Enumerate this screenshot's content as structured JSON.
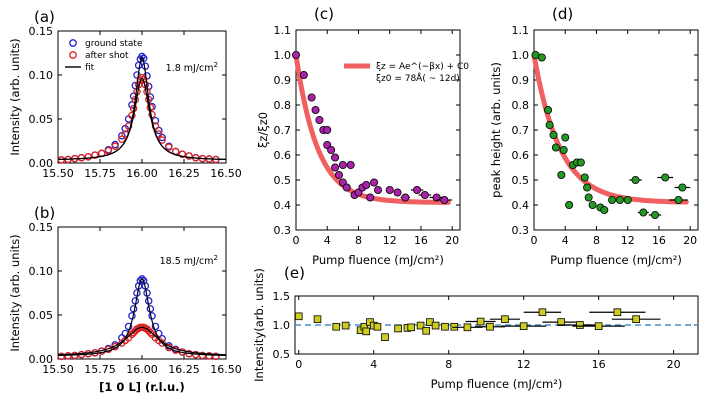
{
  "chart_data": [
    {
      "id": "a",
      "type": "scatter",
      "panel_label": "(a)",
      "ylabel": "Intensity (arb. units)",
      "xlim": [
        15.5,
        16.5
      ],
      "ylim": [
        0,
        0.15
      ],
      "xticks": [
        "15.50",
        "15.75",
        "16.00",
        "16.25",
        "16.50"
      ],
      "yticks": [
        "0.00",
        "0.05",
        "0.10",
        "0.15"
      ],
      "annotation": "1.8 mJ/cm",
      "annotation_sup": "2",
      "legend": {
        "ground": "ground state",
        "after": "after shot",
        "fit": "fit"
      },
      "series": [
        {
          "name": "ground state",
          "color": "#2222cc",
          "marker": "circle",
          "x": [
            15.52,
            15.56,
            15.6,
            15.64,
            15.68,
            15.72,
            15.76,
            15.8,
            15.84,
            15.88,
            15.9,
            15.92,
            15.94,
            15.95,
            15.96,
            15.97,
            15.98,
            15.99,
            16.0,
            16.01,
            16.02,
            16.03,
            16.04,
            16.05,
            16.06,
            16.08,
            16.1,
            16.12,
            16.16,
            16.2,
            16.24,
            16.28,
            16.32,
            16.36,
            16.4,
            16.44
          ],
          "y": [
            0.0035,
            0.004,
            0.005,
            0.006,
            0.007,
            0.009,
            0.011,
            0.015,
            0.021,
            0.031,
            0.039,
            0.05,
            0.066,
            0.076,
            0.088,
            0.1,
            0.111,
            0.118,
            0.121,
            0.119,
            0.11,
            0.099,
            0.087,
            0.075,
            0.064,
            0.048,
            0.037,
            0.029,
            0.019,
            0.013,
            0.01,
            0.008,
            0.006,
            0.005,
            0.0045,
            0.004
          ]
        },
        {
          "name": "after shot",
          "color": "#dd2222",
          "marker": "circle",
          "x": [
            15.52,
            15.56,
            15.6,
            15.64,
            15.68,
            15.72,
            15.76,
            15.8,
            15.84,
            15.88,
            15.9,
            15.92,
            15.94,
            15.95,
            15.96,
            15.97,
            15.98,
            15.99,
            16.0,
            16.01,
            16.02,
            16.03,
            16.04,
            16.05,
            16.06,
            16.08,
            16.1,
            16.12,
            16.16,
            16.2,
            16.24,
            16.28,
            16.32,
            16.36,
            16.4,
            16.44
          ],
          "y": [
            0.0035,
            0.004,
            0.005,
            0.006,
            0.007,
            0.009,
            0.011,
            0.014,
            0.019,
            0.027,
            0.033,
            0.042,
            0.054,
            0.062,
            0.072,
            0.081,
            0.089,
            0.094,
            0.097,
            0.095,
            0.089,
            0.081,
            0.072,
            0.063,
            0.055,
            0.042,
            0.033,
            0.026,
            0.018,
            0.013,
            0.01,
            0.008,
            0.006,
            0.005,
            0.0045,
            0.004
          ]
        }
      ]
    },
    {
      "id": "b",
      "type": "scatter",
      "panel_label": "(b)",
      "ylabel": "Intensity (arb. units)",
      "xlabel": "[1 0 L] (r.l.u.)",
      "xlim": [
        15.5,
        16.5
      ],
      "ylim": [
        0,
        0.15
      ],
      "xticks": [
        "15.50",
        "15.75",
        "16.00",
        "16.25",
        "16.50"
      ],
      "yticks": [
        "0.00",
        "0.05",
        "0.10",
        "0.15"
      ],
      "annotation": "18.5 mJ/cm",
      "annotation_sup": "2",
      "series": [
        {
          "name": "ground state",
          "color": "#2222cc",
          "marker": "circle",
          "x": [
            15.52,
            15.56,
            15.6,
            15.64,
            15.68,
            15.72,
            15.76,
            15.8,
            15.84,
            15.88,
            15.9,
            15.92,
            15.94,
            15.95,
            15.96,
            15.97,
            15.98,
            15.99,
            16.0,
            16.01,
            16.02,
            16.03,
            16.04,
            16.05,
            16.06,
            16.08,
            16.1,
            16.12,
            16.16,
            16.2,
            16.24,
            16.28,
            16.32,
            16.36,
            16.4,
            16.44
          ],
          "y": [
            0.003,
            0.0035,
            0.004,
            0.005,
            0.006,
            0.007,
            0.009,
            0.012,
            0.016,
            0.024,
            0.029,
            0.037,
            0.049,
            0.057,
            0.066,
            0.075,
            0.083,
            0.089,
            0.091,
            0.089,
            0.083,
            0.075,
            0.066,
            0.057,
            0.049,
            0.037,
            0.029,
            0.023,
            0.015,
            0.011,
            0.008,
            0.006,
            0.005,
            0.004,
            0.0035,
            0.003
          ]
        },
        {
          "name": "after shot",
          "color": "#dd2222",
          "marker": "circle",
          "x": [
            15.52,
            15.56,
            15.6,
            15.64,
            15.68,
            15.72,
            15.76,
            15.8,
            15.84,
            15.88,
            15.9,
            15.92,
            15.94,
            15.95,
            15.96,
            15.97,
            15.98,
            15.99,
            16.0,
            16.01,
            16.02,
            16.03,
            16.04,
            16.05,
            16.06,
            16.08,
            16.1,
            16.12,
            16.16,
            16.2,
            16.24,
            16.28,
            16.32,
            16.36,
            16.4,
            16.44
          ],
          "y": [
            0.003,
            0.0035,
            0.004,
            0.005,
            0.006,
            0.007,
            0.009,
            0.011,
            0.014,
            0.018,
            0.021,
            0.024,
            0.028,
            0.03,
            0.032,
            0.034,
            0.035,
            0.036,
            0.036,
            0.036,
            0.035,
            0.034,
            0.032,
            0.03,
            0.028,
            0.024,
            0.021,
            0.018,
            0.013,
            0.01,
            0.008,
            0.006,
            0.005,
            0.004,
            0.0035,
            0.003
          ]
        }
      ]
    },
    {
      "id": "c",
      "type": "scatter",
      "panel_label": "(c)",
      "ylabel": "ξz/ξz0",
      "xlabel": "Pump fluence (mJ/cm²)",
      "xlim": [
        0,
        21
      ],
      "ylim": [
        0.3,
        1.1
      ],
      "xticks": [
        "0",
        "4",
        "8",
        "12",
        "16",
        "20"
      ],
      "yticks": [
        "0.3",
        "0.4",
        "0.5",
        "0.6",
        "0.7",
        "0.8",
        "0.9",
        "1.0",
        "1.1"
      ],
      "legend_line1": "ξz = Ae^(−βx) + C0",
      "legend_line2": "ξz0 = 78Å( ~ 12d)",
      "fit": {
        "A": 0.59,
        "beta": 0.36,
        "C0": 0.41,
        "color": "#f06060"
      },
      "series": [
        {
          "name": "data",
          "color": "#aa22aa",
          "marker": "circle",
          "x": [
            0.0,
            1.0,
            2.0,
            2.5,
            3.0,
            3.5,
            4.0,
            4.0,
            4.5,
            5.0,
            5.0,
            5.5,
            6.0,
            6.0,
            6.5,
            7.0,
            7.5,
            8.0,
            8.5,
            9.0,
            9.5,
            10.0,
            10.5,
            12.0,
            13.0,
            14.0,
            15.5,
            16.5,
            18.0,
            19.0
          ],
          "y": [
            1.0,
            0.92,
            0.83,
            0.78,
            0.74,
            0.7,
            0.7,
            0.64,
            0.62,
            0.59,
            0.55,
            0.52,
            0.56,
            0.49,
            0.47,
            0.56,
            0.44,
            0.45,
            0.47,
            0.48,
            0.43,
            0.49,
            0.46,
            0.46,
            0.45,
            0.43,
            0.46,
            0.44,
            0.43,
            0.42
          ],
          "xerr": [
            0,
            0,
            0,
            0,
            0,
            0,
            0,
            0,
            0,
            0,
            0,
            0,
            0,
            0,
            0,
            0,
            0,
            0,
            0,
            0,
            0,
            0,
            0,
            0,
            0,
            0.6,
            0.8,
            0.8,
            0.9,
            1.0
          ]
        }
      ]
    },
    {
      "id": "d",
      "type": "scatter",
      "panel_label": "(d)",
      "ylabel": "peak height (arb. units)",
      "xlabel": "Pump fluence (mJ/cm²)",
      "xlim": [
        0,
        21
      ],
      "ylim": [
        0.3,
        1.1
      ],
      "xticks": [
        "0",
        "4",
        "8",
        "12",
        "16",
        "20"
      ],
      "yticks": [
        "0.3",
        "0.4",
        "0.5",
        "0.6",
        "0.7",
        "0.8",
        "0.9",
        "1.0",
        "1.1"
      ],
      "fit": {
        "A": 0.59,
        "beta": 0.3,
        "C0": 0.41,
        "color": "#f06060"
      },
      "series": [
        {
          "name": "data",
          "color": "#229922",
          "marker": "circle",
          "x": [
            0.2,
            1.0,
            1.8,
            2.0,
            2.5,
            2.8,
            3.5,
            3.8,
            4.0,
            4.5,
            5.0,
            5.5,
            6.0,
            6.5,
            6.8,
            7.0,
            7.5,
            8.5,
            9.0,
            10.0,
            11.0,
            12.0,
            13.0,
            14.0,
            15.5,
            16.8,
            18.5
          ],
          "y": [
            1.0,
            0.99,
            0.78,
            0.72,
            0.68,
            0.63,
            0.52,
            0.62,
            0.67,
            0.4,
            0.56,
            0.57,
            0.57,
            0.51,
            0.47,
            0.43,
            0.4,
            0.39,
            0.38,
            0.42,
            0.42,
            0.42,
            0.5,
            0.37,
            0.36,
            0.51,
            0.42
          ],
          "xerr": [
            0,
            0,
            0,
            0,
            0,
            0,
            0,
            0,
            0,
            0,
            0,
            0,
            0,
            0,
            0,
            0,
            0,
            0,
            0,
            0,
            0,
            0,
            0.8,
            0.7,
            0.8,
            1.0,
            1.2
          ]
        },
        {
          "name": "data2",
          "color": "#229922",
          "marker": "circle",
          "x": [
            19.0
          ],
          "y": [
            0.47
          ],
          "xerr": [
            1.0
          ]
        }
      ]
    },
    {
      "id": "e",
      "type": "scatter",
      "panel_label": "(e)",
      "ylabel": "Intensity(arb. units)",
      "xlabel": "Pump fluence (mJ/cm²)",
      "xlim": [
        -0.2,
        21.3
      ],
      "ylim": [
        0.5,
        1.5
      ],
      "xticks": [
        "0",
        "4",
        "8",
        "12",
        "16",
        "20"
      ],
      "yticks": [
        "0.5",
        "1.0",
        "1.5"
      ],
      "reference_line": 1.0,
      "series": [
        {
          "name": "data",
          "color": "#cccc22",
          "marker": "square",
          "x": [
            0.0,
            1.0,
            2.0,
            2.5,
            3.3,
            3.5,
            3.6,
            3.8,
            4.0,
            4.2,
            4.6,
            5.3,
            5.8,
            6.0,
            6.5,
            6.8,
            7.0,
            7.3,
            7.8,
            8.3,
            9.0,
            9.7,
            10.2,
            11.0,
            12.0,
            13.0,
            14.0,
            15.0,
            16.0,
            17.0,
            18.0
          ],
          "y": [
            1.15,
            1.1,
            0.97,
            0.99,
            0.91,
            0.97,
            0.89,
            1.05,
            0.99,
            0.97,
            0.79,
            0.94,
            0.95,
            0.96,
            0.99,
            0.9,
            1.05,
            0.99,
            0.97,
            0.97,
            0.96,
            1.06,
            0.97,
            1.1,
            0.98,
            1.22,
            1.05,
            1.0,
            0.98,
            1.22,
            1.1
          ],
          "xerr": [
            0,
            0,
            0,
            0,
            0,
            0,
            0,
            0,
            0,
            0,
            0,
            0,
            0,
            0,
            0,
            0,
            0,
            0,
            0,
            0,
            0.8,
            0.8,
            0.8,
            0.8,
            1.2,
            1.0,
            1.0,
            1.2,
            1.4,
            1.5,
            1.3
          ]
        }
      ]
    }
  ]
}
